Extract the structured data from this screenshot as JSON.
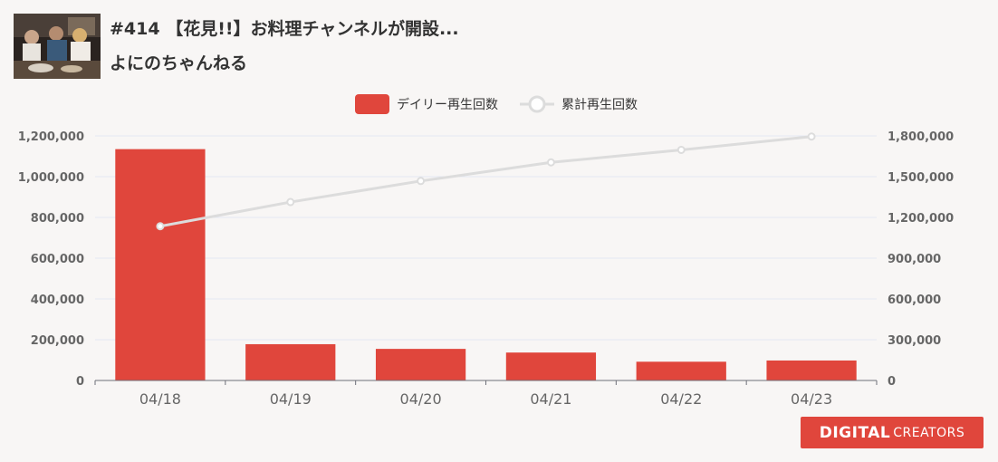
{
  "header": {
    "video_title": "#414 【花見!!】お料理チャンネルが開設...",
    "channel_name": "よにのちゃんねる"
  },
  "badge": {
    "logo_part1": "DIGITAL",
    "logo_part2": "CREATORS"
  },
  "colors": {
    "bar": "#e0463c",
    "line": "#dcdcdc",
    "background": "#f8f6f5",
    "axis_text": "#666666",
    "grid": "#e3e8f2"
  },
  "chart_data": {
    "type": "bar",
    "categories": [
      "04/18",
      "04/19",
      "04/20",
      "04/21",
      "04/22",
      "04/23"
    ],
    "series": [
      {
        "name": "デイリー再生回数",
        "type": "bar",
        "axis": "left",
        "values": [
          1135000,
          178000,
          155000,
          137000,
          92000,
          98000
        ]
      },
      {
        "name": "累計再生回数",
        "type": "line",
        "axis": "right",
        "values": [
          1135000,
          1313000,
          1468000,
          1605000,
          1697000,
          1795000
        ]
      }
    ],
    "y_left": {
      "min": 0,
      "max": 1200000,
      "ticks": [
        "0",
        "200,000",
        "400,000",
        "600,000",
        "800,000",
        "1,000,000",
        "1,200,000"
      ]
    },
    "y_right": {
      "min": 0,
      "max": 1800000,
      "ticks": [
        "0",
        "300,000",
        "600,000",
        "900,000",
        "1,200,000",
        "1,500,000",
        "1,800,000"
      ]
    },
    "grid": true,
    "legend_position": "top-center"
  }
}
